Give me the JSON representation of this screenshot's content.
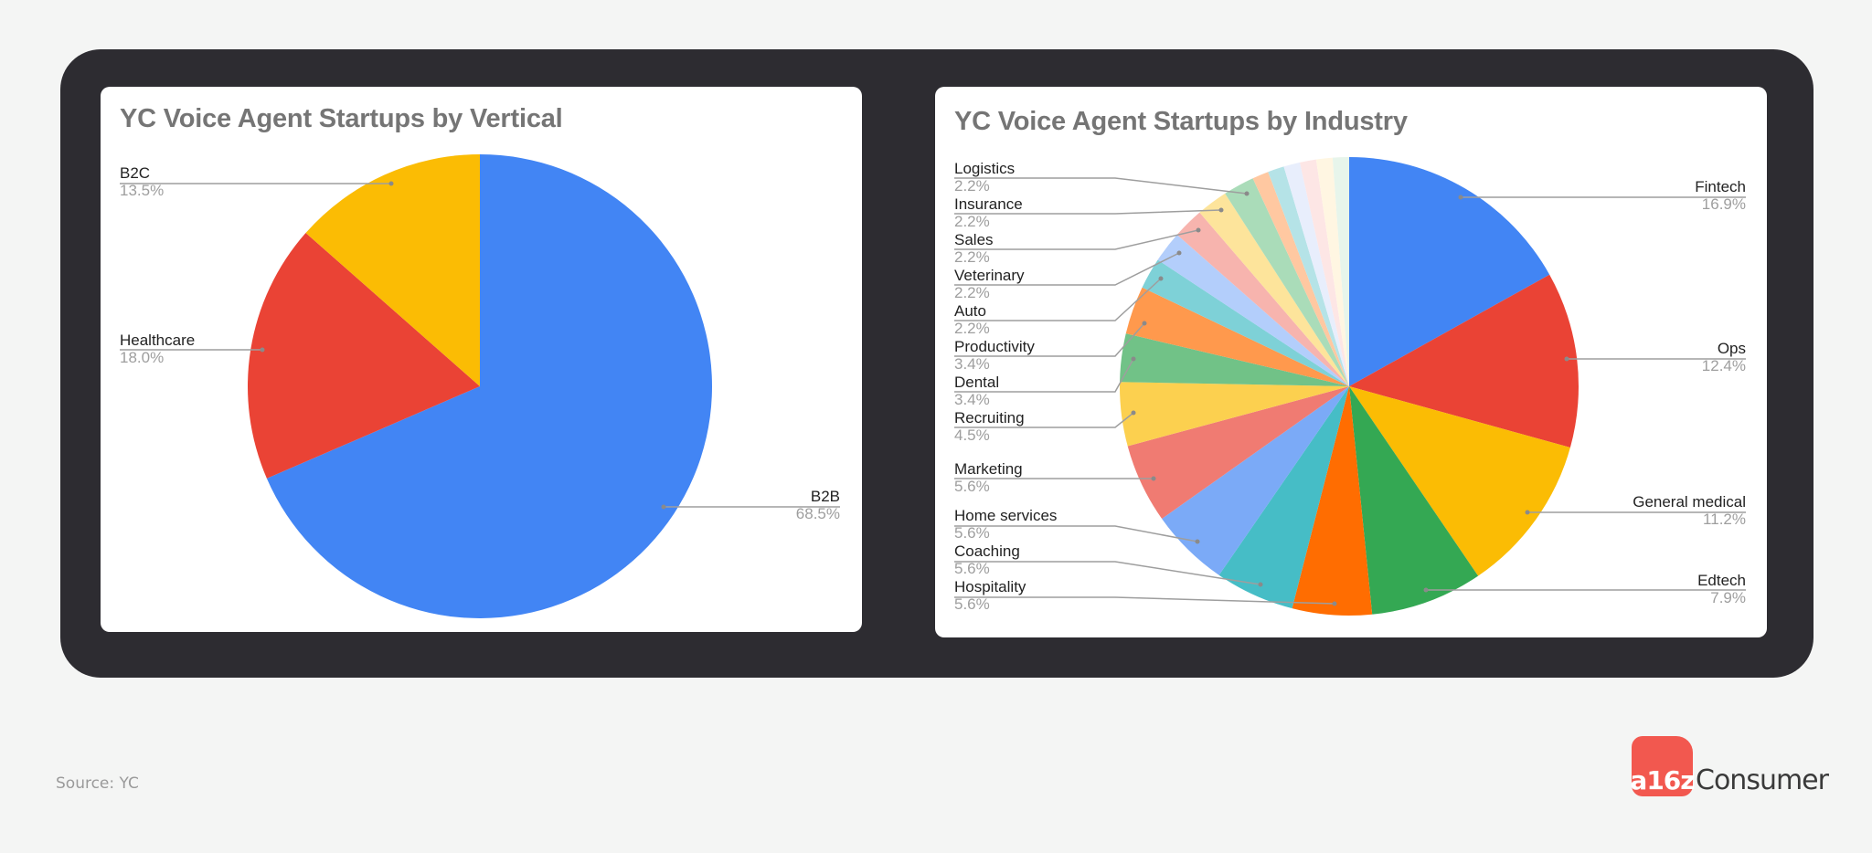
{
  "footer": {
    "source": "Source: YC",
    "logo_badge": "a16z",
    "logo_text": "Consumer"
  },
  "chart_data": [
    {
      "type": "pie",
      "title": "YC Voice Agent Startups by Vertical",
      "categories": [
        "B2B",
        "Healthcare",
        "B2C"
      ],
      "values": [
        68.5,
        18.0,
        13.5
      ],
      "labels": [
        "68.5%",
        "18.0%",
        "13.5%"
      ],
      "colors": [
        "#4285f4",
        "#ea4335",
        "#fbbc04"
      ],
      "start_angle": "12 o'clock, clockwise",
      "legend_position": "labeled callouts"
    },
    {
      "type": "pie",
      "title": "YC Voice Agent Startups by Industry",
      "categories": [
        "Fintech",
        "Ops",
        "General medical",
        "Edtech",
        "Hospitality",
        "Coaching",
        "Home services",
        "Marketing",
        "Recruiting",
        "Dental",
        "Productivity",
        "Auto",
        "Veterinary",
        "Sales",
        "Insurance",
        "Logistics",
        "",
        "",
        "",
        "",
        "",
        ""
      ],
      "values": [
        16.9,
        12.4,
        11.2,
        7.9,
        5.6,
        5.6,
        5.6,
        5.6,
        4.5,
        3.4,
        3.4,
        2.2,
        2.2,
        2.2,
        2.2,
        2.2,
        1.15,
        1.15,
        1.15,
        1.15,
        1.15,
        1.15
      ],
      "labels": [
        "16.9%",
        "12.4%",
        "11.2%",
        "7.9%",
        "5.6%",
        "5.6%",
        "5.6%",
        "5.6%",
        "4.5%",
        "3.4%",
        "3.4%",
        "2.2%",
        "2.2%",
        "2.2%",
        "2.2%",
        "2.2%",
        "",
        "",
        "",
        "",
        "",
        ""
      ],
      "colors": [
        "#4285f4",
        "#ea4335",
        "#fbbc04",
        "#34a853",
        "#ff6d01",
        "#46bdc6",
        "#7baaf7",
        "#f07b72",
        "#fcd04f",
        "#71c287",
        "#ff994d",
        "#7ed1d7",
        "#b3cefb",
        "#f7b4ae",
        "#fde49b",
        "#aadcb9",
        "#ffc8a1",
        "#b5e3e7",
        "#e8eefc",
        "#fde6e5",
        "#fff6e2",
        "#e7f5eb"
      ],
      "start_angle": "12 o'clock, clockwise",
      "legend_position": "labeled callouts"
    }
  ]
}
